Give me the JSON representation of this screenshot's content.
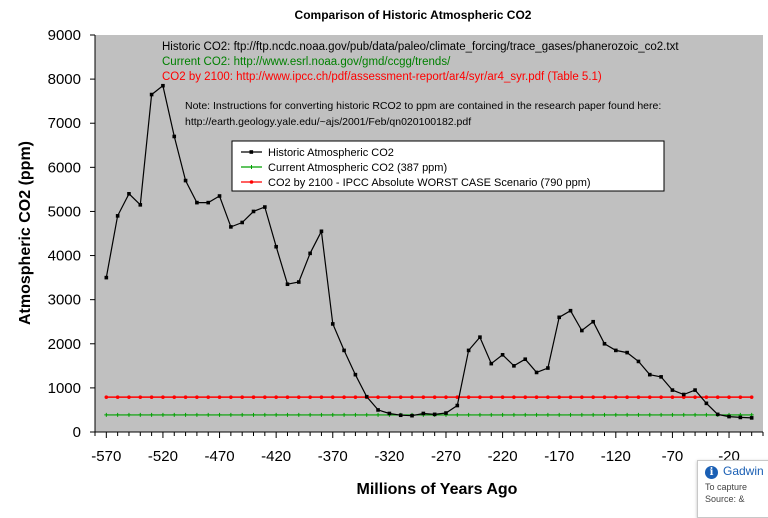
{
  "chart_data": {
    "type": "line",
    "title": "Comparison of Historic Atmospheric CO2",
    "xlabel": "Millions of Years Ago",
    "ylabel": "Atmospheric CO2 (ppm)",
    "xlim": [
      -580,
      10
    ],
    "ylim": [
      0,
      9000
    ],
    "xticks": [
      -570,
      -520,
      -470,
      -420,
      -370,
      -320,
      -270,
      -220,
      -170,
      -120,
      -70,
      -20
    ],
    "yticks": [
      0,
      1000,
      2000,
      3000,
      4000,
      5000,
      6000,
      7000,
      8000,
      9000
    ],
    "grid": false,
    "plot_background": "#c0c0c0",
    "legend_position": "upper-center",
    "source_lines": [
      {
        "text": "Historic CO2: ftp://ftp.ncdc.noaa.gov/pub/data/paleo/climate_forcing/trace_gases/phanerozoic_co2.txt",
        "color": "#000000"
      },
      {
        "text": "Current CO2: http://www.esrl.noaa.gov/gmd/ccgg/trends/",
        "color": "#008000"
      },
      {
        "text": "CO2 by 2100: http://www.ipcc.ch/pdf/assessment-report/ar4/syr/ar4_syr.pdf (Table 5.1)",
        "color": "#ff0000"
      }
    ],
    "note_lines": [
      "Note: Instructions for converting historic RCO2 to ppm are contained in the research paper found here:",
      "http://earth.geology.yale.edu/~ajs/2001/Feb/qn020100182.pdf"
    ],
    "series": [
      {
        "name": "Historic Atmospheric CO2",
        "color": "#000000",
        "marker": "square",
        "x": [
          -570,
          -560,
          -550,
          -540,
          -530,
          -520,
          -510,
          -500,
          -490,
          -480,
          -470,
          -460,
          -450,
          -440,
          -430,
          -420,
          -410,
          -400,
          -390,
          -380,
          -370,
          -360,
          -350,
          -340,
          -330,
          -320,
          -310,
          -300,
          -290,
          -280,
          -270,
          -260,
          -250,
          -240,
          -230,
          -220,
          -210,
          -200,
          -190,
          -180,
          -170,
          -160,
          -150,
          -140,
          -130,
          -120,
          -110,
          -100,
          -90,
          -80,
          -70,
          -60,
          -50,
          -40,
          -30,
          -20,
          -10,
          0
        ],
        "y": [
          3500,
          4900,
          5400,
          5150,
          7650,
          7850,
          6700,
          5700,
          5200,
          5200,
          5350,
          4650,
          4750,
          5000,
          5100,
          4200,
          3350,
          3400,
          4050,
          4550,
          2450,
          1850,
          1300,
          800,
          500,
          420,
          380,
          370,
          420,
          400,
          430,
          600,
          1850,
          2150,
          1550,
          1750,
          1500,
          1650,
          1350,
          1450,
          2600,
          2750,
          2300,
          2500,
          2000,
          1850,
          1800,
          1600,
          1300,
          1250,
          950,
          850,
          950,
          650,
          400,
          350,
          330,
          320
        ]
      },
      {
        "name": "Current Atmospheric CO2 (387 ppm)",
        "color": "#00a000",
        "marker": "plus",
        "constant": 387
      },
      {
        "name": "CO2 by 2100 - IPCC Absolute WORST CASE Scenario (790 ppm)",
        "color": "#ff0000",
        "marker": "circle",
        "constant": 790
      }
    ]
  },
  "popup": {
    "icon": "info-icon",
    "title": "Gadwin",
    "line1": "To capture",
    "line2": "Source: &"
  }
}
